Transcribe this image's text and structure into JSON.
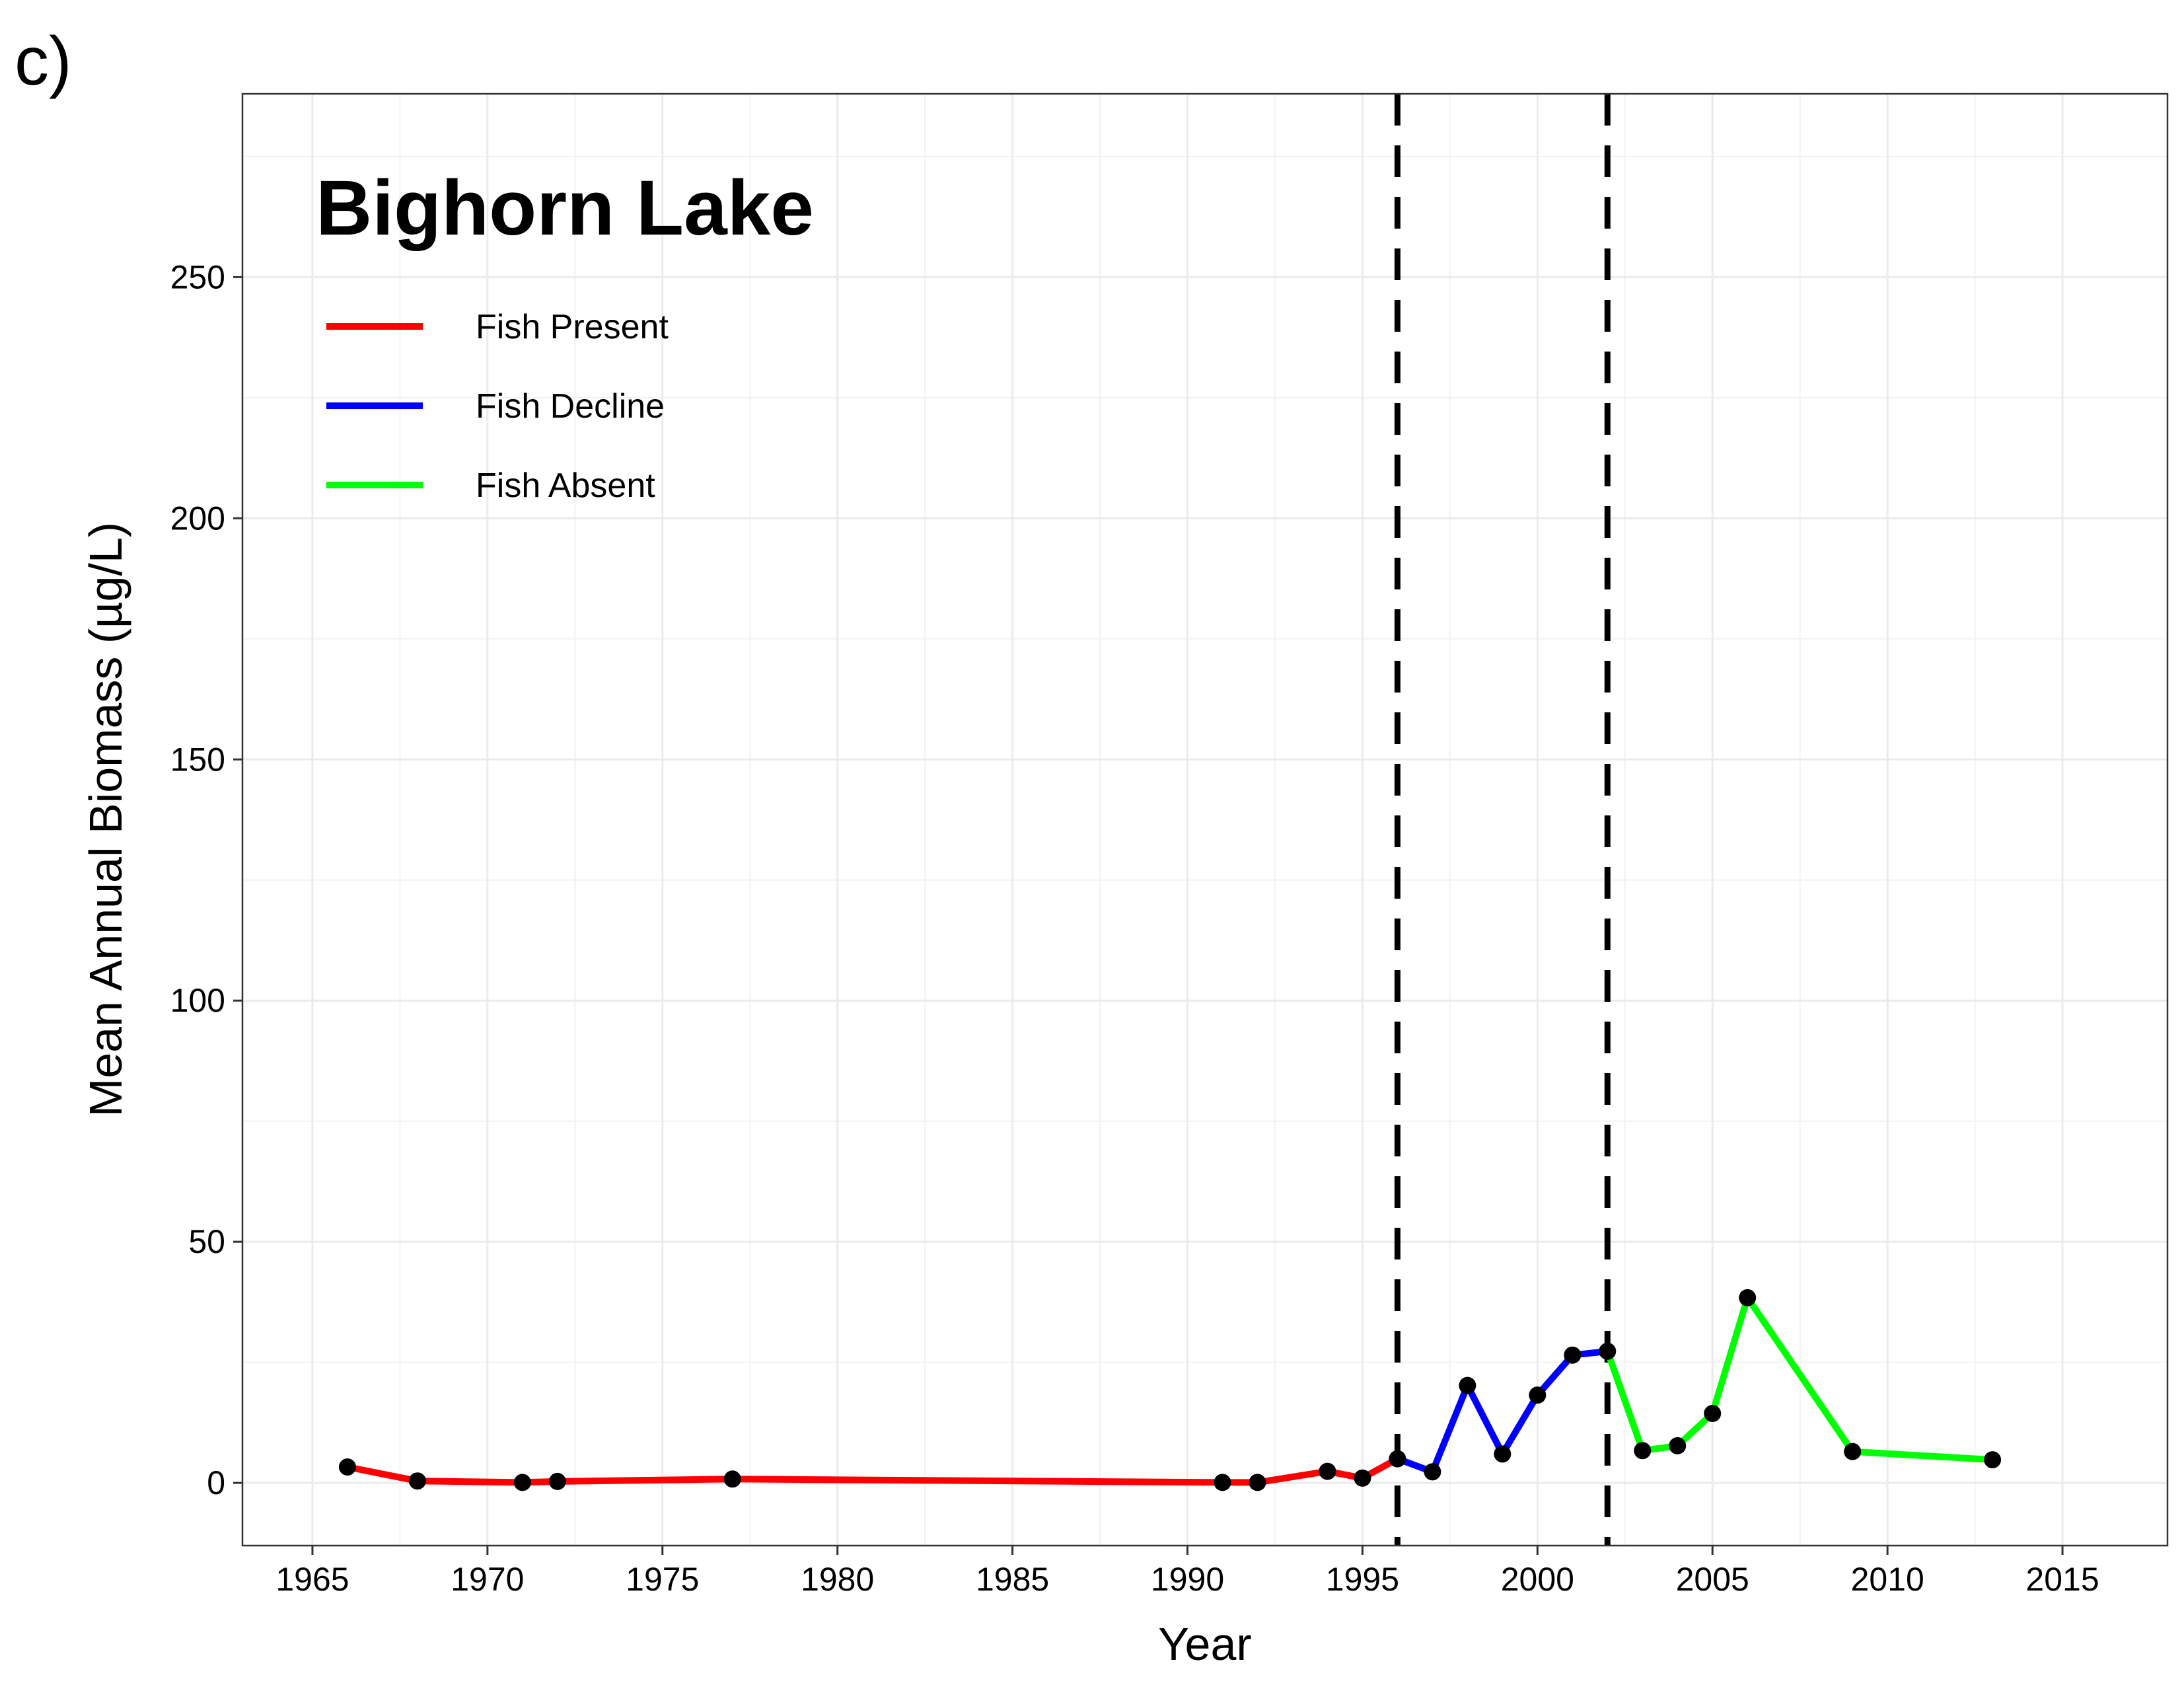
{
  "chart_data": {
    "type": "line",
    "panel_tag": "c)",
    "title": "Bighorn Lake",
    "xlabel": "Year",
    "ylabel": "Mean Annual Biomass (µg/L)",
    "xlim": [
      1963,
      2018
    ],
    "ylim": [
      -13,
      288
    ],
    "x_ticks": [
      1965,
      1970,
      1975,
      1980,
      1985,
      1990,
      1995,
      2000,
      2005,
      2010,
      2015
    ],
    "y_ticks": [
      0,
      50,
      100,
      150,
      200,
      250
    ],
    "grid": true,
    "legend_position": "top-left",
    "vertical_lines": [
      {
        "x": 1996,
        "style": "dashed",
        "color": "#000000"
      },
      {
        "x": 2002,
        "style": "dashed",
        "color": "#000000"
      }
    ],
    "series": [
      {
        "name": "Fish Present",
        "color": "#ff0000",
        "x": [
          1966,
          1968,
          1971,
          1972,
          1977,
          1991,
          1992,
          1994,
          1995,
          1996
        ],
        "y": [
          3.3,
          0.4,
          0.1,
          0.3,
          0.8,
          0.1,
          0.1,
          2.4,
          1.0,
          5.0
        ]
      },
      {
        "name": "Fish Decline",
        "color": "#0000ff",
        "x": [
          1996,
          1997,
          1998,
          1999,
          2000,
          2001,
          2002
        ],
        "y": [
          5.0,
          2.3,
          20.2,
          6.0,
          18.2,
          26.5,
          27.3
        ]
      },
      {
        "name": "Fish Absent",
        "color": "#00ff00",
        "x": [
          2002,
          2003,
          2004,
          2005,
          2006,
          2009,
          2013
        ],
        "y": [
          27.3,
          6.7,
          7.7,
          14.4,
          38.4,
          6.5,
          4.8
        ]
      }
    ],
    "points": {
      "color": "#000000",
      "x": [
        1966,
        1968,
        1971,
        1972,
        1977,
        1991,
        1992,
        1994,
        1995,
        1996,
        1997,
        1998,
        1999,
        2000,
        2001,
        2002,
        2003,
        2004,
        2005,
        2006,
        2009,
        2013
      ],
      "y": [
        3.3,
        0.4,
        0.1,
        0.3,
        0.8,
        0.1,
        0.1,
        2.4,
        1.0,
        5.0,
        2.3,
        20.2,
        6.0,
        18.2,
        26.5,
        27.3,
        6.7,
        7.7,
        14.4,
        38.4,
        6.5,
        4.8
      ]
    }
  }
}
